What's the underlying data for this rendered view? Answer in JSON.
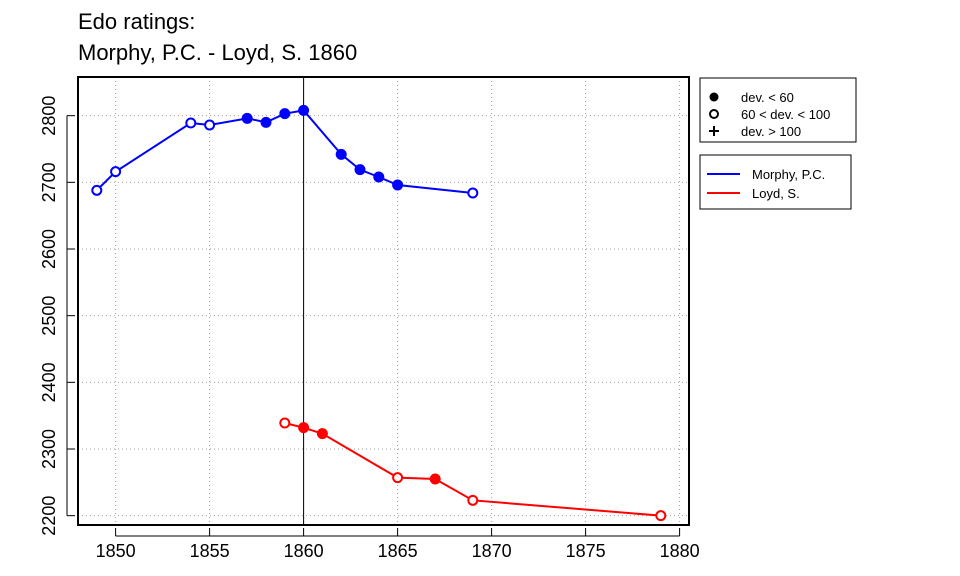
{
  "chart_data": {
    "type": "line",
    "title": "Edo ratings:",
    "subtitle": "Morphy, P.C. - Loyd, S. 1860",
    "xlabel": "",
    "ylabel": "",
    "xlim": [
      1848,
      1880.5
    ],
    "ylim": [
      2186,
      2858
    ],
    "x_ticks": [
      1850,
      1855,
      1860,
      1865,
      1870,
      1875,
      1880
    ],
    "x_tick_labels": [
      "1850",
      "1855",
      "1860",
      "1865",
      "1870",
      "1875",
      "1880"
    ],
    "y_ticks": [
      2200,
      2300,
      2400,
      2500,
      2600,
      2700,
      2800
    ],
    "y_tick_labels": [
      "2200",
      "2300",
      "2400",
      "2500",
      "2600",
      "2700",
      "2800"
    ],
    "grid": true,
    "reference_line_x": 1860,
    "marker_legend": {
      "placement": "top-right outside",
      "entries": [
        {
          "symbol": "filled",
          "label": "dev. < 60"
        },
        {
          "symbol": "open",
          "label": "60 < dev. < 100"
        },
        {
          "symbol": "plus",
          "label": "dev. > 100"
        }
      ]
    },
    "series": [
      {
        "name": "Morphy, P.C.",
        "color": "#0000ff",
        "points": [
          {
            "x": 1849,
            "y": 2688,
            "marker": "open"
          },
          {
            "x": 1850,
            "y": 2716,
            "marker": "open"
          },
          {
            "x": 1854,
            "y": 2789,
            "marker": "open"
          },
          {
            "x": 1855,
            "y": 2786,
            "marker": "open"
          },
          {
            "x": 1857,
            "y": 2796,
            "marker": "filled"
          },
          {
            "x": 1858,
            "y": 2790,
            "marker": "filled"
          },
          {
            "x": 1859,
            "y": 2803,
            "marker": "filled"
          },
          {
            "x": 1860,
            "y": 2808,
            "marker": "filled"
          },
          {
            "x": 1862,
            "y": 2742,
            "marker": "filled"
          },
          {
            "x": 1863,
            "y": 2719,
            "marker": "filled"
          },
          {
            "x": 1864,
            "y": 2708,
            "marker": "filled"
          },
          {
            "x": 1865,
            "y": 2696,
            "marker": "filled"
          },
          {
            "x": 1869,
            "y": 2684,
            "marker": "open"
          }
        ]
      },
      {
        "name": "Loyd, S.",
        "color": "#ff0000",
        "points": [
          {
            "x": 1859,
            "y": 2339,
            "marker": "open"
          },
          {
            "x": 1860,
            "y": 2332,
            "marker": "filled"
          },
          {
            "x": 1861,
            "y": 2323,
            "marker": "filled"
          },
          {
            "x": 1865,
            "y": 2257,
            "marker": "open"
          },
          {
            "x": 1867,
            "y": 2255,
            "marker": "filled"
          },
          {
            "x": 1869,
            "y": 2223,
            "marker": "open"
          },
          {
            "x": 1879,
            "y": 2200,
            "marker": "open"
          }
        ]
      }
    ]
  }
}
